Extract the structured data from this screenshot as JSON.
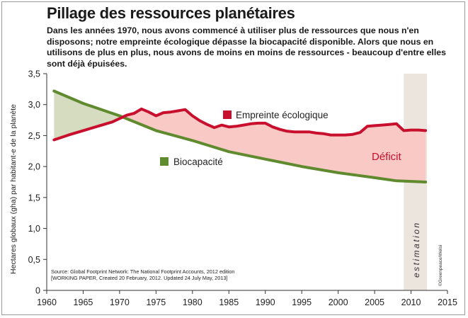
{
  "title": "Pillage des ressources planétaires",
  "subtitle": "Dans les années 1970, nous avons commencé à utiliser plus de ressources que nous n'en disposons; notre empreinte écologique dépasse la biocapacité disponible. Alors que nous en utilisons de plus en plus, nous avons de moins en moins de ressources - beaucoup d'entre elles sont déjà épuisées.",
  "colors": {
    "footprint": "#c8102e",
    "biocapacity": "#5f8a2e",
    "deficit_fill": "#f9c9c6",
    "surplus_fill": "#d6dcc0",
    "estimation_band": "#ece5de"
  },
  "chart_data": {
    "type": "line",
    "ylabel": "Hectares globaux (gha) par habitant-e de la planète",
    "xlabel": "",
    "xlim": [
      1960,
      2015
    ],
    "ylim": [
      0,
      3.5
    ],
    "x_ticks": [
      "1960",
      "1965",
      "1970",
      "1975",
      "1980",
      "1985",
      "1990",
      "1995",
      "2000",
      "2005",
      "2010",
      "2015"
    ],
    "y_ticks": [
      "0",
      "0,5",
      "1,0",
      "1,5",
      "2,0",
      "2,5",
      "3,0",
      "3,5"
    ],
    "grid": false,
    "series": [
      {
        "name": "Empreinte écologique",
        "color": "#c8102e",
        "x": [
          1961,
          1963,
          1965,
          1967,
          1969,
          1971,
          1972,
          1973,
          1974,
          1975,
          1976,
          1977,
          1978,
          1979,
          1980,
          1981,
          1982,
          1983,
          1984,
          1985,
          1986,
          1987,
          1988,
          1989,
          1990,
          1991,
          1992,
          1993,
          1994,
          1995,
          1996,
          1997,
          1998,
          1999,
          2000,
          2001,
          2002,
          2003,
          2004,
          2005,
          2006,
          2007,
          2008,
          2009,
          2010,
          2011,
          2012
        ],
        "y": [
          2.43,
          2.51,
          2.58,
          2.65,
          2.72,
          2.83,
          2.86,
          2.93,
          2.88,
          2.82,
          2.87,
          2.88,
          2.9,
          2.92,
          2.82,
          2.74,
          2.68,
          2.63,
          2.67,
          2.64,
          2.65,
          2.67,
          2.69,
          2.7,
          2.7,
          2.64,
          2.6,
          2.57,
          2.56,
          2.56,
          2.56,
          2.54,
          2.53,
          2.51,
          2.51,
          2.51,
          2.52,
          2.55,
          2.65,
          2.66,
          2.67,
          2.68,
          2.69,
          2.58,
          2.59,
          2.59,
          2.58
        ]
      },
      {
        "name": "Biocapacité",
        "color": "#5f8a2e",
        "x": [
          1961,
          1965,
          1970,
          1975,
          1980,
          1985,
          1990,
          1995,
          2000,
          2005,
          2008,
          2012
        ],
        "y": [
          3.22,
          3.02,
          2.82,
          2.58,
          2.42,
          2.24,
          2.12,
          2.0,
          1.9,
          1.82,
          1.77,
          1.75
        ]
      }
    ],
    "annotations": {
      "deficit": "Déficit",
      "estimation": "estimation",
      "estimation_range": [
        2009,
        2012
      ]
    },
    "source": [
      "Source: Global Footprint Network: The National Footprint Accounts, 2012 edition",
      "[WORKING PAPER, Created 20 February, 2012. Updated 24 July May, 2013]"
    ],
    "credit": "©Greenpeace/Welsi"
  }
}
